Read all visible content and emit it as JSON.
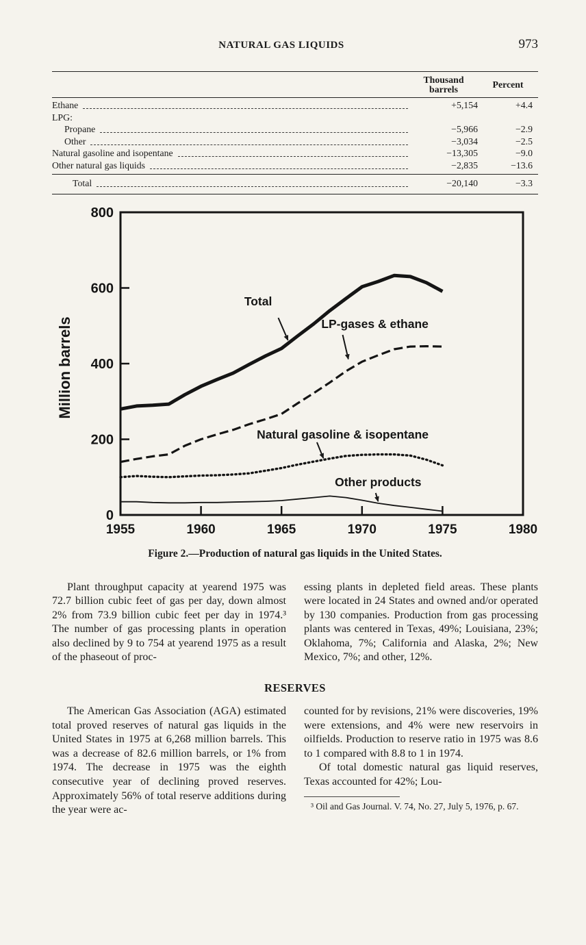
{
  "header": {
    "title": "NATURAL GAS LIQUIDS",
    "page_number": "973"
  },
  "table": {
    "col_headers": {
      "barrels_line1": "Thousand",
      "barrels_line2": "barrels",
      "percent": "Percent"
    },
    "rows": [
      {
        "label": "Ethane",
        "indent": 0,
        "leader": true,
        "barrels": "+5,154",
        "percent": "+4.4"
      },
      {
        "label": "LPG:",
        "indent": 0,
        "leader": false,
        "barrels": "",
        "percent": ""
      },
      {
        "label": "Propane",
        "indent": 1,
        "leader": true,
        "barrels": "−5,966",
        "percent": "−2.9"
      },
      {
        "label": "Other",
        "indent": 1,
        "leader": true,
        "barrels": "−3,034",
        "percent": "−2.5"
      },
      {
        "label": "Natural gasoline and isopentane",
        "indent": 0,
        "leader": true,
        "barrels": "−13,305",
        "percent": "−9.0"
      },
      {
        "label": "Other natural gas liquids",
        "indent": 0,
        "leader": true,
        "barrels": "−2,835",
        "percent": "−13.6"
      }
    ],
    "total_row": {
      "label": "Total",
      "barrels": "−20,140",
      "percent": "−3.3"
    }
  },
  "chart_data": {
    "type": "line",
    "title": "Figure 2.—Production of natural gas liquids in the United States.",
    "xlabel": "",
    "ylabel": "Million barrels",
    "xlim": [
      1955,
      1980
    ],
    "ylim": [
      0,
      800
    ],
    "xticks": [
      1955,
      1960,
      1965,
      1970,
      1975,
      1980
    ],
    "yticks": [
      0,
      200,
      400,
      600,
      800
    ],
    "grid": false,
    "legend_position": "inline-annotations",
    "x": [
      1955,
      1956,
      1957,
      1958,
      1959,
      1960,
      1961,
      1962,
      1963,
      1964,
      1965,
      1966,
      1967,
      1968,
      1969,
      1970,
      1971,
      1972,
      1973,
      1974,
      1975
    ],
    "series": [
      {
        "name": "Total",
        "style": "solid_thick",
        "values": [
          280,
          288,
          290,
          293,
          318,
          340,
          358,
          375,
          398,
          420,
          440,
          473,
          505,
          540,
          572,
          603,
          617,
          633,
          630,
          614,
          591
        ]
      },
      {
        "name": "LP-gases & ethane",
        "style": "dashed",
        "values": [
          140,
          148,
          155,
          160,
          183,
          200,
          213,
          225,
          240,
          253,
          267,
          295,
          322,
          350,
          380,
          405,
          422,
          438,
          445,
          446,
          445
        ]
      },
      {
        "name": "Natural gasoline & isopentane",
        "style": "dotted",
        "values": [
          100,
          103,
          101,
          100,
          102,
          104,
          105,
          107,
          110,
          117,
          124,
          133,
          141,
          149,
          156,
          159,
          160,
          160,
          157,
          146,
          131
        ]
      },
      {
        "name": "Other products",
        "style": "solid_thin",
        "values": [
          35,
          35,
          33,
          32,
          32,
          33,
          33,
          34,
          35,
          36,
          38,
          42,
          46,
          50,
          46,
          39,
          31,
          25,
          20,
          15,
          10
        ]
      }
    ],
    "annotations": [
      {
        "text": "Total",
        "tx": 1963.55,
        "ty": 554,
        "arrow": [
          1964.8,
          521,
          1965.4,
          462
        ]
      },
      {
        "text": "LP-gases & ethane",
        "tx": 1970.8,
        "ty": 494,
        "arrow": [
          1968.8,
          476,
          1969.15,
          412
        ]
      },
      {
        "text": "Natural gasoline & isopentane",
        "tx": 1968.8,
        "ty": 202,
        "arrow": [
          1967.2,
          192,
          1967.6,
          150
        ]
      },
      {
        "text": "Other products",
        "tx": 1971.0,
        "ty": 76,
        "arrow": [
          1970.85,
          58,
          1971.0,
          36
        ]
      }
    ]
  },
  "figure": {
    "caption": "Figure 2.—Production of natural gas liquids in the United States."
  },
  "body": {
    "col1_para1": "Plant throughput capacity at yearend 1975 was 72.7 billion cubic feet of gas per day, down almost 2% from 73.9 billion cubic feet per day in 1974.³ The number of gas processing plants in operation also declined by 9 to 754 at yearend 1975 as a result of the phaseout of proc-",
    "col2_para1": "essing plants in depleted field areas. These plants were located in 24 States and owned and/or operated by 130 companies. Production from gas processing plants was centered in Texas, 49%; Louisiana, 23%; Oklahoma, 7%; California and Alaska, 2%; New Mexico, 7%; and other, 12%.",
    "section_heading": "RESERVES",
    "col1_para2": "The American Gas Association (AGA) estimated total proved reserves of natural gas liquids in the United States in 1975 at 6,268 million barrels. This was a decrease of 82.6 million barrels, or 1% from 1974. The decrease in 1975 was the eighth consecutive year of declining proved reserves. Approximately 56% of total reserve additions during the year were ac-",
    "col2_para2": "counted for by revisions, 21% were discoveries, 19% were extensions, and 4% were new reservoirs in oilfields. Production to reserve ratio in 1975 was 8.6 to 1 compared with 8.8 to 1 in 1974.",
    "col2_para3": "Of total domestic natural gas liquid reserves, Texas accounted for 42%; Lou-",
    "footnote": "³ Oil and Gas Journal. V. 74, No. 27, July 5, 1976, p. 67."
  }
}
